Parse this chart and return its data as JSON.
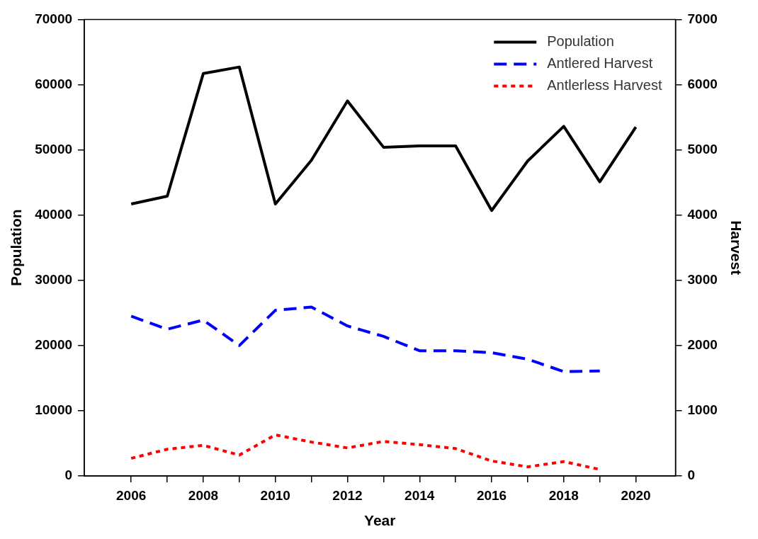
{
  "chart_data": {
    "type": "line",
    "xlabel": "Year",
    "ylabel": "Population",
    "y2label": "Harvest",
    "x": [
      2006,
      2007,
      2008,
      2009,
      2010,
      2011,
      2012,
      2013,
      2014,
      2015,
      2016,
      2017,
      2018,
      2019,
      2020
    ],
    "xlim": [
      2004.7,
      2021.1
    ],
    "xticks": [
      2006,
      {
        "value": 2007,
        "label": null
      },
      2008,
      {
        "value": 2009,
        "label": null
      },
      2010,
      {
        "value": 2011,
        "label": null
      },
      2012,
      {
        "value": 2013,
        "label": null
      },
      2014,
      {
        "value": 2015,
        "label": null
      },
      2016,
      {
        "value": 2017,
        "label": null
      },
      2018,
      {
        "value": 2019,
        "label": null
      },
      2020
    ],
    "ylim": [
      0,
      70000
    ],
    "yticks": [
      0,
      10000,
      20000,
      30000,
      40000,
      50000,
      60000,
      70000
    ],
    "y2lim": [
      0,
      7000
    ],
    "y2ticks": [
      0,
      1000,
      2000,
      3000,
      4000,
      5000,
      6000,
      7000
    ],
    "legend": "top right",
    "grid": false,
    "marker": "none",
    "series": [
      {
        "name": "Population",
        "color": "#000000",
        "line_style": "solid",
        "values": [
          41700,
          42900,
          61700,
          62700,
          41700,
          48400,
          57500,
          50400,
          50600,
          50600,
          40700,
          48300,
          53600,
          45100,
          53500
        ]
      },
      {
        "name": "Antlered Harvest",
        "color": "#0000ff",
        "line_style": "dashed",
        "axis": "y2",
        "values": [
          2450,
          2250,
          2390,
          2000,
          2540,
          2590,
          2300,
          2140,
          1920,
          1920,
          1890,
          1790,
          1600,
          1610,
          null
        ]
      },
      {
        "name": "Antlerless Harvest",
        "color": "#ff0000",
        "line_style": "dotted",
        "axis": "y2",
        "values": [
          270,
          410,
          470,
          320,
          630,
          520,
          430,
          530,
          480,
          420,
          230,
          140,
          220,
          100,
          null
        ]
      }
    ]
  }
}
